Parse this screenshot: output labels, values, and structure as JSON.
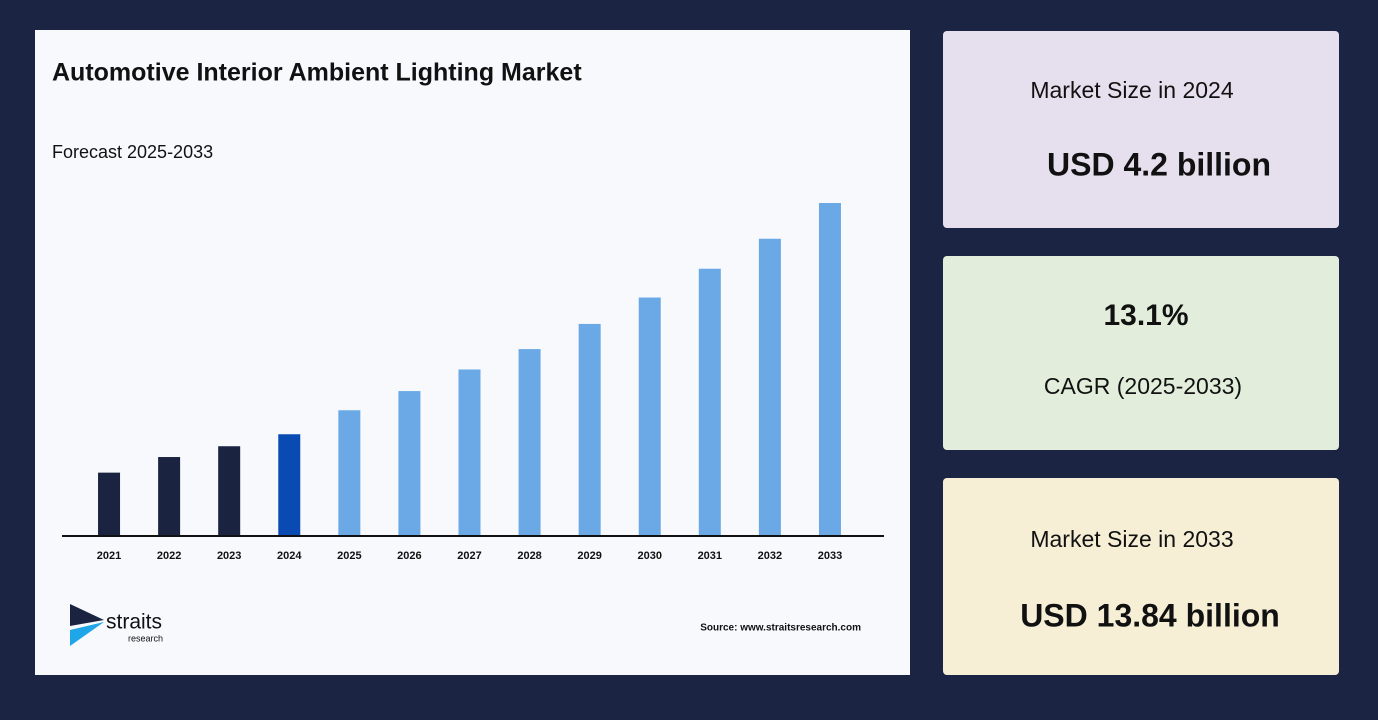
{
  "chart_data": {
    "type": "bar",
    "title": "Automotive Interior Ambient Lighting Market",
    "subtitle": "Forecast 2025-2033",
    "categories": [
      "2021",
      "2022",
      "2023",
      "2024",
      "2025",
      "2026",
      "2027",
      "2028",
      "2029",
      "2030",
      "2031",
      "2032",
      "2033"
    ],
    "values": [
      2.6,
      3.25,
      3.7,
      4.2,
      5.2,
      6.0,
      6.9,
      7.75,
      8.8,
      9.9,
      11.1,
      12.35,
      13.84
    ],
    "colors": [
      "#1a2340",
      "#1a2340",
      "#1a2340",
      "#0a4bb3",
      "#6aa9e6",
      "#6aa9e6",
      "#6aa9e6",
      "#6aa9e6",
      "#6aa9e6",
      "#6aa9e6",
      "#6aa9e6",
      "#6aa9e6",
      "#6aa9e6"
    ],
    "source": "Source: www.straitsresearch.com"
  },
  "logo": {
    "name": "straits",
    "tagline": "research"
  },
  "cards": [
    {
      "label": "Market Size in 2024",
      "value": "USD 4.2 billion"
    },
    {
      "label": "CAGR (2025-2033)",
      "value": "13.1%"
    },
    {
      "label": "Market Size in 2033",
      "value": "USD 13.84 billion"
    }
  ]
}
